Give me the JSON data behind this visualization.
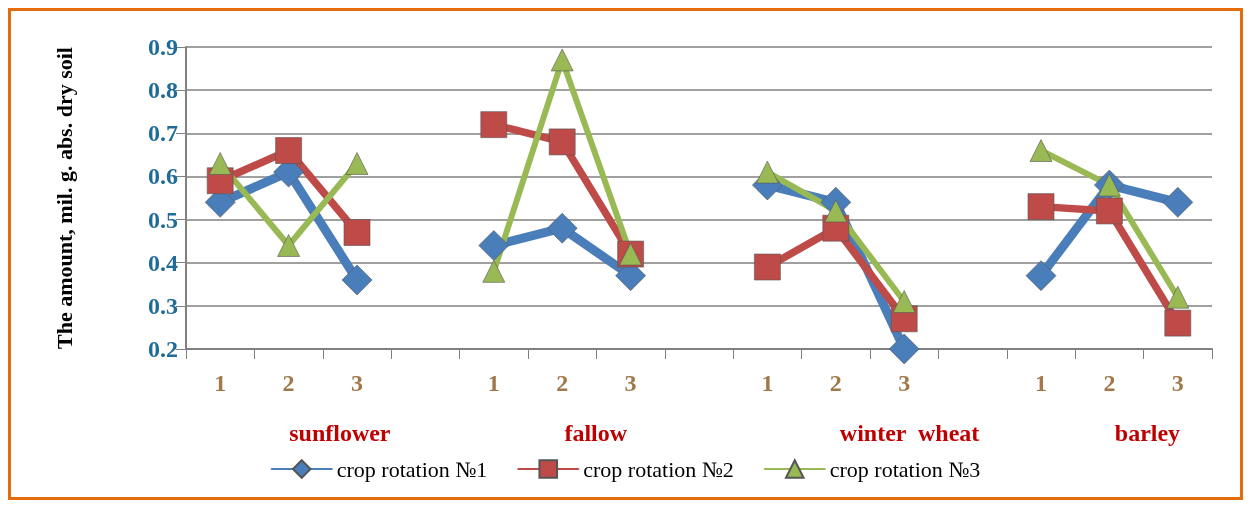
{
  "chart_data": {
    "type": "line",
    "ylabel": "The amount, mil. g. abs. dry soil",
    "categories": [
      "1",
      "2",
      "3",
      null,
      "1",
      "2",
      "3",
      null,
      "1",
      "2",
      "3",
      null,
      "1",
      "2",
      "3"
    ],
    "annotations": [
      "sunflower",
      "fallow",
      "winter  wheat",
      "barley"
    ],
    "series": [
      {
        "name": "crop rotation №1",
        "color": "#4a7ebb",
        "marker": "diamond",
        "values": [
          0.54,
          0.61,
          0.36,
          null,
          0.44,
          0.48,
          0.37,
          null,
          0.58,
          0.54,
          0.2,
          null,
          0.37,
          0.58,
          0.54
        ]
      },
      {
        "name": "crop rotation №2",
        "color": "#be4b48",
        "marker": "square",
        "values": [
          0.59,
          0.66,
          0.47,
          null,
          0.72,
          0.68,
          0.42,
          null,
          0.39,
          0.48,
          0.27,
          null,
          0.53,
          0.52,
          0.26
        ]
      },
      {
        "name": "crop rotation №3",
        "color": "#98b954",
        "marker": "triangle",
        "values": [
          0.63,
          0.44,
          0.63,
          null,
          0.38,
          0.87,
          0.42,
          null,
          0.61,
          0.52,
          0.31,
          null,
          0.66,
          0.58,
          0.32
        ]
      }
    ],
    "ylim": [
      0.2,
      0.9
    ],
    "yticks": [
      0.2,
      0.3,
      0.4,
      0.5,
      0.6,
      0.7,
      0.8,
      0.9
    ],
    "grid": "y",
    "legend": "bottom",
    "line_style": "solid"
  }
}
